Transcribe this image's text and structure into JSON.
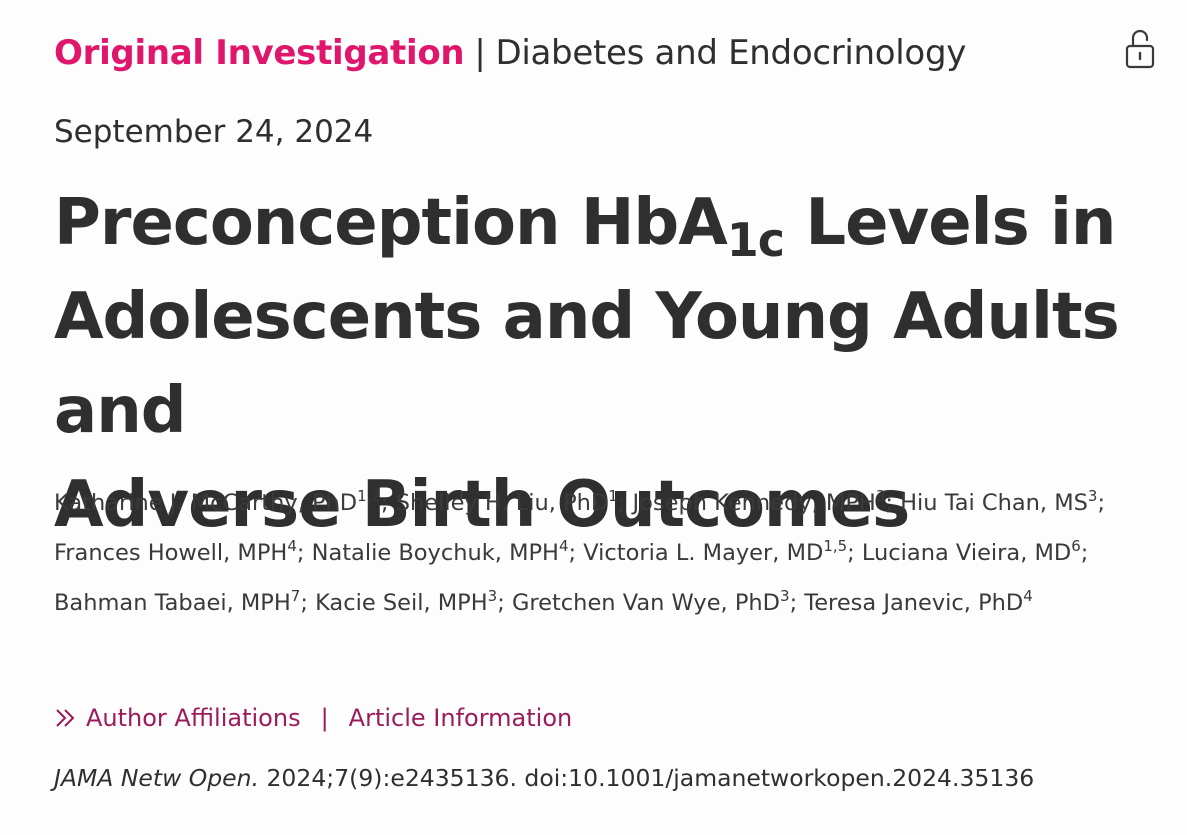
{
  "header": {
    "article_type": "Original Investigation",
    "separator": "|",
    "section": "Diabetes and Endocrinology",
    "access_icon": "unlocked-padlock-icon"
  },
  "date": "September 24, 2024",
  "title": {
    "line1_pre": "Preconception HbA",
    "line1_sub": "1c",
    "line1_post": " Levels in",
    "line2": "Adolescents and Young Adults and",
    "line3": "Adverse Birth Outcomes"
  },
  "authors": [
    {
      "name": "Katharine J. McCarthy, PhD",
      "aff": "1,2",
      "sep": "; "
    },
    {
      "name": "Shelley H. Liu, PhD",
      "aff": "1",
      "sep": "; "
    },
    {
      "name": "Joseph Kennedy, MPH",
      "aff": "3",
      "sep": "; "
    },
    {
      "name": "Hiu Tai Chan, MS",
      "aff": "3",
      "sep": "; "
    },
    {
      "name": "Frances Howell, MPH",
      "aff": "4",
      "sep": "; "
    },
    {
      "name": "Natalie Boychuk, MPH",
      "aff": "4",
      "sep": "; "
    },
    {
      "name": "Victoria L. Mayer, MD",
      "aff": "1,5",
      "sep": "; "
    },
    {
      "name": "Luciana Vieira, MD",
      "aff": "6",
      "sep": "; "
    },
    {
      "name": "Bahman Tabaei, MPH",
      "aff": "7",
      "sep": "; "
    },
    {
      "name": "Kacie Seil, MPH",
      "aff": "3",
      "sep": "; "
    },
    {
      "name": "Gretchen Van Wye, PhD",
      "aff": "3",
      "sep": "; "
    },
    {
      "name": "Teresa Janevic, PhD",
      "aff": "4",
      "sep": ""
    }
  ],
  "links": {
    "icon": "double-chevron-right-icon",
    "author_affiliations": "Author Affiliations",
    "separator": "|",
    "article_information": "Article Information"
  },
  "citation": {
    "journal": "JAMA Netw Open.",
    "reference": " 2024;7(9):e2435136. doi:10.1001/jamanetworkopen.2024.35136"
  },
  "colors": {
    "accent": "#e0166c",
    "link": "#9a1c5b",
    "text": "#2f2f2f"
  }
}
